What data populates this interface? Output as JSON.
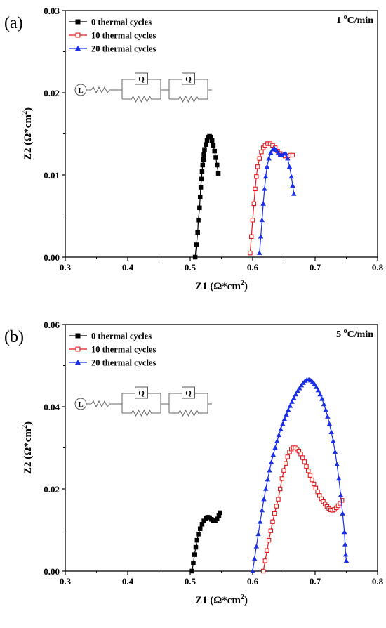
{
  "chart_data": [
    {
      "type": "scatter",
      "panel_label": "(a)",
      "annotation_prefix": "1 ",
      "annotation_sup": "o",
      "annotation_suffix": "C/min",
      "xlabel_main": "Z1 (Ω*cm",
      "xlabel_sup": "2",
      "xlabel_end": ")",
      "ylabel_main": "Z2 (Ω*cm",
      "ylabel_sup": "2",
      "ylabel_end": ")",
      "xlim": [
        0.3,
        0.8
      ],
      "ylim": [
        0.0,
        0.03
      ],
      "xticks": [
        "0.3",
        "0.4",
        "0.5",
        "0.6",
        "0.7",
        "0.8"
      ],
      "yticks": [
        "0.00",
        "0.01",
        "0.02",
        "0.03"
      ],
      "circuit": {
        "inductor": "L",
        "elements": [
          "Q",
          "Q"
        ]
      },
      "legend_position": "top-left",
      "series": [
        {
          "name": "0 thermal cycles",
          "color": "#000000",
          "marker": "square-filled",
          "x": [
            0.508,
            0.51,
            0.512,
            0.513,
            0.515,
            0.516,
            0.517,
            0.518,
            0.519,
            0.52,
            0.521,
            0.522,
            0.523,
            0.525,
            0.527,
            0.529,
            0.531,
            0.533,
            0.535,
            0.537,
            0.539,
            0.541,
            0.543,
            0.545
          ],
          "y": [
            0.0,
            0.0015,
            0.003,
            0.0045,
            0.006,
            0.0073,
            0.0085,
            0.0095,
            0.0104,
            0.0112,
            0.0119,
            0.0125,
            0.0131,
            0.0137,
            0.0142,
            0.0146,
            0.0147,
            0.0146,
            0.0142,
            0.0136,
            0.0129,
            0.0121,
            0.0112,
            0.0102
          ]
        },
        {
          "name": "10 thermal cycles",
          "color": "#e3191b",
          "marker": "square-open",
          "x": [
            0.596,
            0.598,
            0.6,
            0.602,
            0.604,
            0.606,
            0.608,
            0.611,
            0.614,
            0.617,
            0.62,
            0.624,
            0.628,
            0.632,
            0.636,
            0.64,
            0.644,
            0.648,
            0.652,
            0.656,
            0.66,
            0.664
          ],
          "y": [
            0.0005,
            0.0025,
            0.0045,
            0.0065,
            0.0083,
            0.0098,
            0.011,
            0.012,
            0.0128,
            0.0133,
            0.0136,
            0.0138,
            0.0138,
            0.0136,
            0.0133,
            0.0129,
            0.0126,
            0.0124,
            0.0123,
            0.0123,
            0.0124,
            0.0124
          ]
        },
        {
          "name": "20 thermal cycles",
          "color": "#1a2ee6",
          "marker": "triangle-filled",
          "x": [
            0.611,
            0.613,
            0.615,
            0.617,
            0.619,
            0.621,
            0.623,
            0.626,
            0.629,
            0.632,
            0.635,
            0.638,
            0.641,
            0.644,
            0.647,
            0.65,
            0.653,
            0.656,
            0.659,
            0.662,
            0.664,
            0.666
          ],
          "y": [
            0.0005,
            0.0025,
            0.0045,
            0.0065,
            0.0083,
            0.0098,
            0.011,
            0.012,
            0.0127,
            0.0131,
            0.0132,
            0.013,
            0.0127,
            0.0124,
            0.0124,
            0.0126,
            0.0126,
            0.012,
            0.011,
            0.0098,
            0.0087,
            0.0077
          ]
        }
      ]
    },
    {
      "type": "scatter",
      "panel_label": "(b)",
      "annotation_prefix": "5 ",
      "annotation_sup": "o",
      "annotation_suffix": "C/min",
      "xlabel_main": "Z1 (Ω*cm",
      "xlabel_sup": "2",
      "xlabel_end": ")",
      "ylabel_main": "Z2 (Ω*cm",
      "ylabel_sup": "2",
      "ylabel_end": ")",
      "xlim": [
        0.3,
        0.8
      ],
      "ylim": [
        0.0,
        0.06
      ],
      "xticks": [
        "0.3",
        "0.4",
        "0.5",
        "0.6",
        "0.7",
        "0.8"
      ],
      "yticks": [
        "0.00",
        "0.02",
        "0.04",
        "0.06"
      ],
      "circuit": {
        "inductor": "L",
        "elements": [
          "Q",
          "Q"
        ]
      },
      "legend_position": "top-left",
      "series": [
        {
          "name": "0 thermal cycles",
          "color": "#000000",
          "marker": "square-filled",
          "x": [
            0.503,
            0.505,
            0.507,
            0.509,
            0.511,
            0.513,
            0.516,
            0.519,
            0.522,
            0.525,
            0.528,
            0.531,
            0.534,
            0.537,
            0.54,
            0.543,
            0.546,
            0.548
          ],
          "y": [
            0.0,
            0.002,
            0.004,
            0.0058,
            0.0075,
            0.009,
            0.0103,
            0.0114,
            0.0122,
            0.0128,
            0.0131,
            0.013,
            0.0126,
            0.0123,
            0.0123,
            0.0127,
            0.0135,
            0.0142
          ]
        },
        {
          "name": "10 thermal cycles",
          "color": "#e3191b",
          "marker": "square-open",
          "x": [
            0.617,
            0.62,
            0.623,
            0.626,
            0.629,
            0.632,
            0.635,
            0.638,
            0.641,
            0.644,
            0.647,
            0.65,
            0.653,
            0.656,
            0.659,
            0.662,
            0.665,
            0.668,
            0.671,
            0.674,
            0.677,
            0.68,
            0.683,
            0.686,
            0.689,
            0.692,
            0.695,
            0.698,
            0.701,
            0.704,
            0.707,
            0.71,
            0.713,
            0.716,
            0.719,
            0.722,
            0.725,
            0.728,
            0.731,
            0.734,
            0.737,
            0.74,
            0.743
          ],
          "y": [
            0.0,
            0.0025,
            0.005,
            0.0075,
            0.0098,
            0.012,
            0.014,
            0.0158,
            0.0175,
            0.02,
            0.0225,
            0.0245,
            0.0262,
            0.0278,
            0.029,
            0.0297,
            0.03,
            0.03,
            0.0297,
            0.0292,
            0.0285,
            0.0276,
            0.0266,
            0.0255,
            0.0244,
            0.0233,
            0.0222,
            0.0212,
            0.0202,
            0.0193,
            0.0184,
            0.0176,
            0.0169,
            0.0163,
            0.0157,
            0.0152,
            0.0149,
            0.0148,
            0.015,
            0.0154,
            0.0159,
            0.0165,
            0.0172
          ]
        },
        {
          "name": "20 thermal cycles",
          "color": "#1a2ee6",
          "marker": "triangle-filled",
          "x": [
            0.6,
            0.603,
            0.606,
            0.609,
            0.612,
            0.615,
            0.618,
            0.621,
            0.624,
            0.627,
            0.63,
            0.633,
            0.636,
            0.639,
            0.642,
            0.645,
            0.648,
            0.651,
            0.654,
            0.657,
            0.66,
            0.663,
            0.666,
            0.669,
            0.672,
            0.675,
            0.678,
            0.681,
            0.684,
            0.687,
            0.69,
            0.693,
            0.696,
            0.699,
            0.702,
            0.705,
            0.708,
            0.711,
            0.714,
            0.717,
            0.72,
            0.723,
            0.726,
            0.729,
            0.732,
            0.735,
            0.738,
            0.741,
            0.744,
            0.747,
            0.748,
            0.749,
            0.75
          ],
          "y": [
            0.0,
            0.003,
            0.006,
            0.009,
            0.012,
            0.0148,
            0.0175,
            0.02,
            0.0223,
            0.0245,
            0.0265,
            0.0283,
            0.03,
            0.0316,
            0.0331,
            0.0345,
            0.0358,
            0.037,
            0.0381,
            0.0392,
            0.0402,
            0.0412,
            0.0421,
            0.043,
            0.0438,
            0.0445,
            0.0452,
            0.0458,
            0.0463,
            0.0466,
            0.0466,
            0.0464,
            0.046,
            0.0455,
            0.0448,
            0.044,
            0.043,
            0.0419,
            0.0406,
            0.0392,
            0.0376,
            0.0358,
            0.0338,
            0.0316,
            0.029,
            0.026,
            0.0225,
            0.0185,
            0.014,
            0.0095,
            0.0065,
            0.004,
            0.0025
          ]
        }
      ]
    }
  ]
}
